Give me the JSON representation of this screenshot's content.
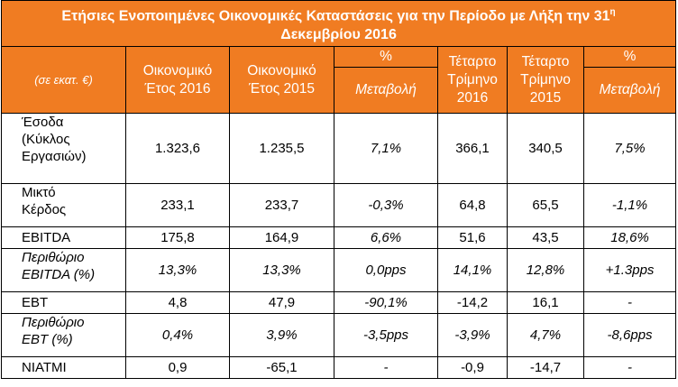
{
  "title": {
    "line1": "Ετήσιες Ενοποιημένες Οικονομικές Καταστάσεις για την Περίοδο με Λήξη την 31",
    "sup": "η",
    "line2": "Δεκεμβρίου 2016"
  },
  "header": {
    "unit": "(σε εκατ. €)",
    "c1": [
      "Οικονομικό",
      "Έτος 2016"
    ],
    "c2": [
      "Οικονομικό",
      "Έτος 2015"
    ],
    "c3": [
      "%",
      "Μεταβολή"
    ],
    "c4": [
      "Τέταρτο",
      "Τρίμηνο",
      "2016"
    ],
    "c5": [
      "Τέταρτο",
      "Τρίμηνο",
      "2015"
    ],
    "c6": [
      "%",
      "Μεταβολή"
    ]
  },
  "rows": [
    {
      "label": [
        "Έσοδα",
        "(Κύκλος",
        "Εργασιών)"
      ],
      "values": [
        "1.323,6",
        "1.235,5",
        "7,1%",
        "366,1",
        "340,5",
        "7,5%"
      ]
    },
    {
      "label": [
        "Μικτό",
        "Κέρδος"
      ],
      "values": [
        "233,1",
        "233,7",
        "-0,3%",
        "64,8",
        "65,5",
        "-1,1%"
      ]
    },
    {
      "label": [
        "EBITDA"
      ],
      "values": [
        "175,8",
        "164,9",
        "6,6%",
        "51,6",
        "43,5",
        "18,6%"
      ]
    },
    {
      "label": [
        "Περιθώριο",
        "EBITDA (%)"
      ],
      "values": [
        "13,3%",
        "13,3%",
        "0,0pps",
        "14,1%",
        "12,8%",
        "+1.3pps"
      ]
    },
    {
      "label": [
        "EBT"
      ],
      "values": [
        "4,8",
        "47,9",
        "-90,1%",
        "-14,2",
        "16,1",
        "-"
      ]
    },
    {
      "label": [
        "Περιθώριο",
        "EBT (%)"
      ],
      "values": [
        "0,4%",
        "3,9%",
        "-3,5pps",
        "-3,9%",
        "4,7%",
        "-8,6pps"
      ]
    },
    {
      "label": [
        "NIATMI"
      ],
      "values": [
        "0,9",
        "-65,1",
        "-",
        "-0,9",
        "-14,7",
        "-"
      ]
    }
  ]
}
